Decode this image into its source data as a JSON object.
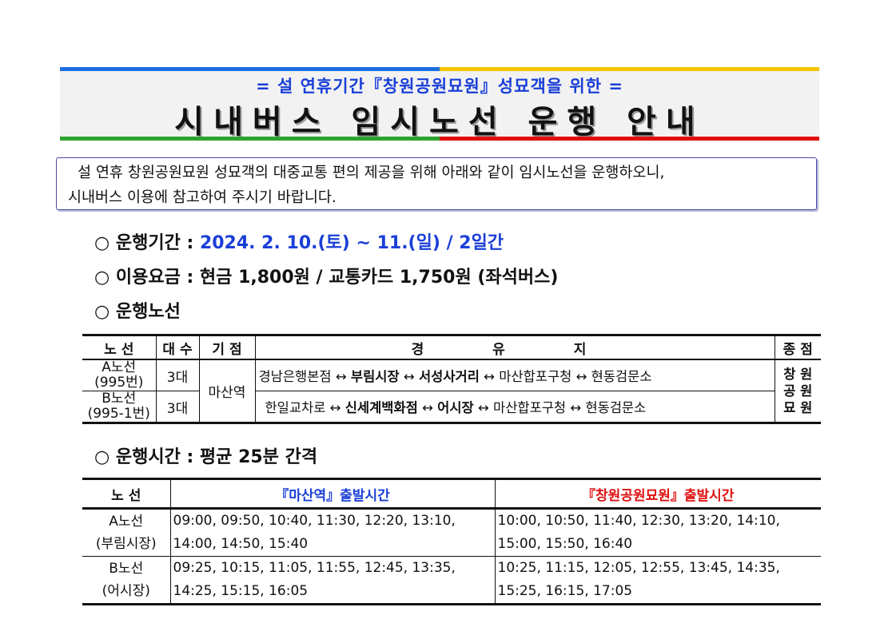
{
  "header": {
    "subtitle": "= 설 연휴기간『창원공원묘원』성묘객을 위한 =",
    "title": "시내버스 임시노선 운행 안내"
  },
  "intro": {
    "line1": "설 연휴 창원공원묘원 성묘객의 대중교통 편의 제공을 위해 아래와 같이 임시노선을 운행하오니,",
    "line2": "시내버스 이용에 참고하여 주시기 바랍니다."
  },
  "info": {
    "period_label": "○ 운행기간 : ",
    "period_value": "2024. 2. 10.(토) ~ 11.(일) / 2일간",
    "fare": "○ 이용요금 : 현금 1,800원 / 교통카드 1,750원 (좌석버스)",
    "routes_label": "○ 운행노선",
    "interval": "○ 운행시간 : 평균 25분 간격"
  },
  "route_table": {
    "headers": [
      "노 선",
      "대 수",
      "기 점",
      "경 유 지",
      "종 점"
    ],
    "start": "마산역",
    "end": [
      "창 원",
      "공 원",
      "묘 원"
    ],
    "arrow": "↔",
    "rows": [
      {
        "route": [
          "A노선",
          "(995번)"
        ],
        "count": "3대",
        "via": [
          "경남은행본점",
          "부림시장",
          "서성사거리",
          "마산합포구청",
          "현동검문소"
        ]
      },
      {
        "route": [
          "B노선",
          "(995-1번)"
        ],
        "count": "3대",
        "via": [
          "한일교차로",
          "신세계백화점",
          "어시장",
          "마산합포구청",
          "현동검문소"
        ]
      }
    ]
  },
  "time_table": {
    "headers": [
      "노 선",
      "『마산역』출발시간",
      "『창원공원묘원』출발시간"
    ],
    "header_colors": [
      "#111111",
      "#1a3fd8",
      "#e01010"
    ],
    "rows": [
      {
        "route": [
          "A노선",
          "(부림시장)"
        ],
        "from_station": [
          "09:00, 09:50, 10:40, 11:30, 12:20, 13:10,",
          "14:00, 14:50, 15:40"
        ],
        "from_cemetery": [
          "10:00, 10:50, 11:40, 12:30, 13:20, 14:10,",
          "15:00, 15:50, 16:40"
        ]
      },
      {
        "route": [
          "B노선",
          "(어시장)"
        ],
        "from_station": [
          "09:25, 10:15, 11:05, 11:55, 12:45, 13:35,",
          "14:25, 15:15, 16:05"
        ],
        "from_cemetery": [
          "10:25, 11:15, 12:05, 12:55, 13:45, 14:35,",
          "15:25, 16:15, 17:05"
        ]
      }
    ]
  }
}
